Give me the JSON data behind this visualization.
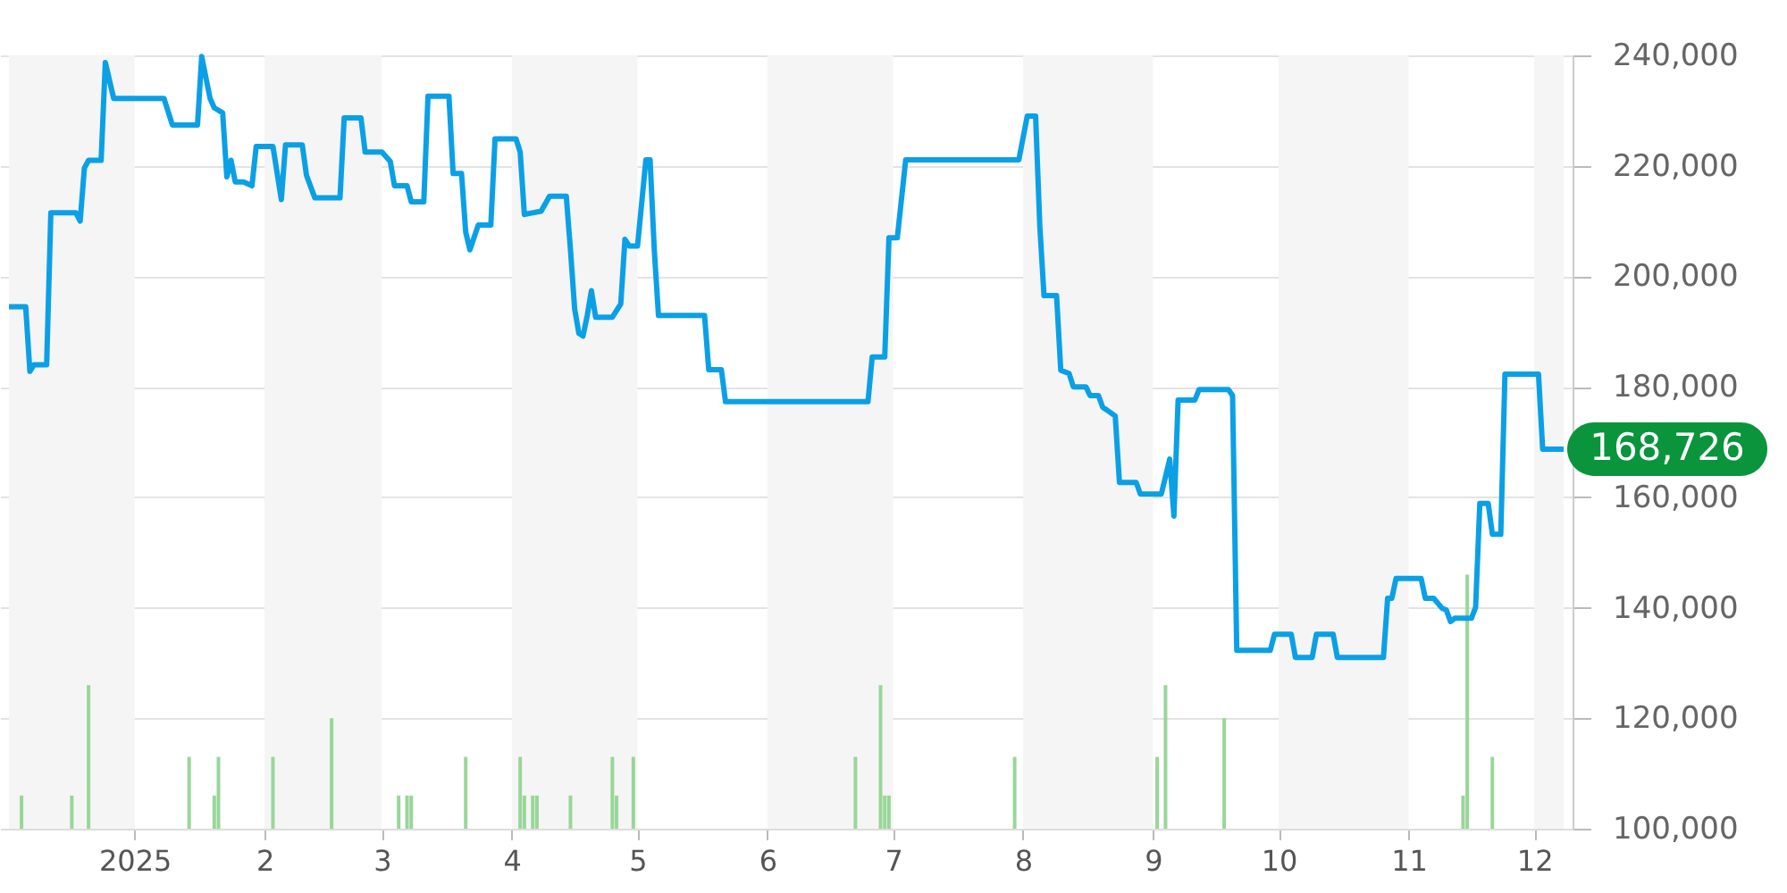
{
  "chart_data": {
    "type": "line",
    "xlim": [
      "2024-12-02",
      "2025-12-08"
    ],
    "xticks": [
      {
        "value": "2025-01-01",
        "label": "2025"
      },
      {
        "value": "2025-02-01",
        "label": "2"
      },
      {
        "value": "2025-03-01",
        "label": "3"
      },
      {
        "value": "2025-04-01",
        "label": "4"
      },
      {
        "value": "2025-05-01",
        "label": "5"
      },
      {
        "value": "2025-06-01",
        "label": "6"
      },
      {
        "value": "2025-07-01",
        "label": "7"
      },
      {
        "value": "2025-08-01",
        "label": "8"
      },
      {
        "value": "2025-09-01",
        "label": "9"
      },
      {
        "value": "2025-10-01",
        "label": "10"
      },
      {
        "value": "2025-11-01",
        "label": "11"
      },
      {
        "value": "2025-12-01",
        "label": "12"
      }
    ],
    "ylim": [
      100000,
      240000
    ],
    "yticks": [
      {
        "value": 100000,
        "label": "100,000"
      },
      {
        "value": 120000,
        "label": "120,000"
      },
      {
        "value": 140000,
        "label": "140,000"
      },
      {
        "value": 160000,
        "label": "160,000"
      },
      {
        "value": 180000,
        "label": "180,000"
      },
      {
        "value": 200000,
        "label": "200,000"
      },
      {
        "value": 220000,
        "label": "220,000"
      },
      {
        "value": 240000,
        "label": "240,000"
      }
    ],
    "grid": "y",
    "bands": [
      {
        "axis": "x",
        "from": "2024-12-02",
        "to": "2025-01-01",
        "color": "#f5f5f5"
      },
      {
        "axis": "x",
        "from": "2025-02-01",
        "to": "2025-03-01",
        "color": "#f5f5f5"
      },
      {
        "axis": "x",
        "from": "2025-04-01",
        "to": "2025-05-01",
        "color": "#f5f5f5"
      },
      {
        "axis": "x",
        "from": "2025-06-01",
        "to": "2025-07-01",
        "color": "#f5f5f5"
      },
      {
        "axis": "x",
        "from": "2025-08-01",
        "to": "2025-09-01",
        "color": "#f5f5f5"
      },
      {
        "axis": "x",
        "from": "2025-10-01",
        "to": "2025-11-01",
        "color": "#f5f5f5"
      },
      {
        "axis": "x",
        "from": "2025-12-01",
        "to": "2025-12-08",
        "color": "#f5f5f5"
      }
    ],
    "annotations": [
      {
        "text": "168,726",
        "x": "2025-12-08",
        "y": 168726
      }
    ],
    "series": [
      {
        "type": "bar",
        "color": "#99d699",
        "x": [
          "2024-12-05",
          "2024-12-17",
          "2024-12-21",
          "2025-01-14",
          "2025-01-20",
          "2025-01-21",
          "2025-02-03",
          "2025-02-17",
          "2025-03-05",
          "2025-03-07",
          "2025-03-08",
          "2025-03-21",
          "2025-04-03",
          "2025-04-04",
          "2025-04-06",
          "2025-04-07",
          "2025-04-15",
          "2025-04-25",
          "2025-04-26",
          "2025-04-30",
          "2025-06-22",
          "2025-06-28",
          "2025-06-29",
          "2025-06-30",
          "2025-07-30",
          "2025-09-02",
          "2025-09-04",
          "2025-09-18",
          "2025-11-14",
          "2025-11-15",
          "2025-11-21"
        ],
        "values": [
          106000,
          106000,
          126000,
          113000,
          106000,
          113000,
          113000,
          120000,
          106000,
          106000,
          106000,
          113000,
          113000,
          106000,
          106000,
          106000,
          106000,
          113000,
          106000,
          113000,
          113000,
          126000,
          106000,
          106000,
          113000,
          113000,
          126000,
          120000,
          106000,
          146000,
          113000
        ]
      },
      {
        "color": "#0ba0e6",
        "x": [
          "2024-12-02",
          "2024-12-06",
          "2024-12-07",
          "2024-12-08",
          "2024-12-11",
          "2024-12-12",
          "2024-12-18",
          "2024-12-19",
          "2024-12-20",
          "2024-12-21",
          "2024-12-24",
          "2024-12-25",
          "2024-12-27",
          "2025-01-08",
          "2025-01-10",
          "2025-01-16",
          "2025-01-17",
          "2025-01-19",
          "2025-01-20",
          "2025-01-22",
          "2025-01-23",
          "2025-01-24",
          "2025-01-25",
          "2025-01-27",
          "2025-01-29",
          "2025-01-30",
          "2025-02-03",
          "2025-02-05",
          "2025-02-06",
          "2025-02-10",
          "2025-02-11",
          "2025-02-13",
          "2025-02-19",
          "2025-02-20",
          "2025-02-24",
          "2025-02-25",
          "2025-03-01",
          "2025-03-03",
          "2025-03-04",
          "2025-03-07",
          "2025-03-08",
          "2025-03-11",
          "2025-03-12",
          "2025-03-17",
          "2025-03-18",
          "2025-03-20",
          "2025-03-21",
          "2025-03-22",
          "2025-03-24",
          "2025-03-27",
          "2025-03-28",
          "2025-04-02",
          "2025-04-03",
          "2025-04-04",
          "2025-04-08",
          "2025-04-10",
          "2025-04-14",
          "2025-04-15",
          "2025-04-16",
          "2025-04-17",
          "2025-04-18",
          "2025-04-19",
          "2025-04-20",
          "2025-04-21",
          "2025-04-25",
          "2025-04-27",
          "2025-04-28",
          "2025-04-29",
          "2025-05-01",
          "2025-05-03",
          "2025-05-04",
          "2025-05-05",
          "2025-05-06",
          "2025-05-17",
          "2025-05-18",
          "2025-05-21",
          "2025-05-22",
          "2025-06-25",
          "2025-06-26",
          "2025-06-29",
          "2025-06-30",
          "2025-07-02",
          "2025-07-04",
          "2025-07-31",
          "2025-08-02",
          "2025-08-04",
          "2025-08-05",
          "2025-08-06",
          "2025-08-09",
          "2025-08-10",
          "2025-08-12",
          "2025-08-13",
          "2025-08-16",
          "2025-08-17",
          "2025-08-19",
          "2025-08-20",
          "2025-08-21",
          "2025-08-23",
          "2025-08-24",
          "2025-08-28",
          "2025-08-29",
          "2025-09-03",
          "2025-09-05",
          "2025-09-06",
          "2025-09-07",
          "2025-09-11",
          "2025-09-12",
          "2025-09-19",
          "2025-09-20",
          "2025-09-21",
          "2025-09-29",
          "2025-09-30",
          "2025-10-04",
          "2025-10-05",
          "2025-10-09",
          "2025-10-10",
          "2025-10-14",
          "2025-10-15",
          "2025-10-26",
          "2025-10-27",
          "2025-10-28",
          "2025-10-29",
          "2025-11-04",
          "2025-11-05",
          "2025-11-07",
          "2025-11-09",
          "2025-11-10",
          "2025-11-11",
          "2025-11-12",
          "2025-11-16",
          "2025-11-17",
          "2025-11-18",
          "2025-11-20",
          "2025-11-21",
          "2025-11-23",
          "2025-11-24",
          "2025-12-02",
          "2025-12-03",
          "2025-12-08"
        ],
        "values": [
          194500,
          194500,
          182800,
          184000,
          184000,
          211500,
          211500,
          210000,
          219600,
          221000,
          221000,
          238700,
          232200,
          232200,
          227400,
          227400,
          239800,
          232200,
          230500,
          229600,
          218000,
          221000,
          217100,
          217100,
          216400,
          223500,
          223500,
          213900,
          223800,
          223800,
          218300,
          214200,
          214200,
          228700,
          228700,
          222500,
          222500,
          220800,
          216400,
          216400,
          213500,
          213500,
          232600,
          232600,
          218600,
          218600,
          208000,
          204800,
          209300,
          209300,
          224900,
          224900,
          222500,
          211200,
          211800,
          214500,
          214500,
          204800,
          194100,
          189700,
          189200,
          192900,
          197400,
          192600,
          192600,
          195000,
          206700,
          205500,
          205500,
          221100,
          221100,
          204800,
          192900,
          192900,
          183100,
          183100,
          177300,
          177300,
          185400,
          185400,
          207000,
          207000,
          221100,
          221100,
          229000,
          229000,
          209100,
          196500,
          196500,
          183000,
          182400,
          180000,
          180000,
          178400,
          178400,
          176300,
          175800,
          174700,
          162700,
          162700,
          160600,
          160600,
          166900,
          156600,
          177600,
          177600,
          179500,
          179500,
          178400,
          132300,
          132300,
          135200,
          135200,
          131000,
          131000,
          135200,
          135200,
          131000,
          131000,
          141700,
          141700,
          145300,
          145300,
          141700,
          141700,
          139900,
          139600,
          137500,
          138100,
          138100,
          140100,
          158900,
          158900,
          153300,
          153300,
          182300,
          182300,
          168726,
          168726
        ]
      }
    ]
  }
}
